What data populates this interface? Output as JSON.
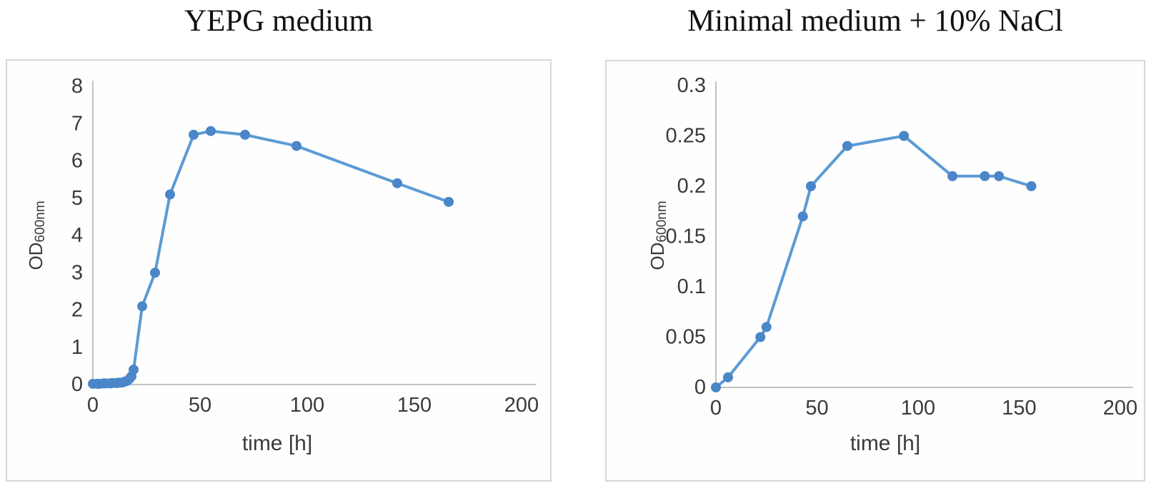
{
  "page": {
    "description": "Two growth-curve line charts of optical density versus time",
    "background_color": "#ffffff"
  },
  "colors": {
    "line": "#5b9bd5",
    "marker": "#4a86c8",
    "axis": "#c2c2c2",
    "tick_text": "#3a3a3a",
    "title_text": "#111111",
    "panel_border": "#d7d7d7"
  },
  "chart_data": [
    {
      "type": "line",
      "title": "YEPG medium",
      "xlabel": "time [h]",
      "ylabel": "OD600nm",
      "ylabel_main": "OD",
      "ylabel_sub": "600nm",
      "xlim": [
        0,
        200
      ],
      "ylim": [
        0,
        8
      ],
      "x_ticks": [
        0,
        50,
        100,
        150,
        200
      ],
      "y_ticks": [
        0,
        1,
        2,
        3,
        4,
        5,
        6,
        7,
        8
      ],
      "grid": false,
      "legend": false,
      "series": [
        {
          "name": "OD600nm",
          "x": [
            0,
            2,
            3,
            5,
            6,
            8,
            9,
            11,
            12,
            13,
            14,
            15,
            16,
            17,
            18,
            19,
            23,
            29,
            36,
            47,
            55,
            71,
            95,
            142,
            166
          ],
          "y": [
            0.02,
            0.02,
            0.02,
            0.03,
            0.03,
            0.03,
            0.04,
            0.04,
            0.05,
            0.05,
            0.06,
            0.08,
            0.1,
            0.15,
            0.22,
            0.4,
            2.1,
            3.0,
            5.1,
            6.7,
            6.8,
            6.7,
            6.4,
            5.4,
            4.9
          ]
        }
      ]
    },
    {
      "type": "line",
      "title": "Minimal medium + 10% NaCl",
      "xlabel": "time [h]",
      "ylabel": "OD600nm",
      "ylabel_main": "OD",
      "ylabel_sub": "600nm",
      "xlim": [
        0,
        200
      ],
      "ylim": [
        0,
        0.3
      ],
      "x_ticks": [
        0,
        50,
        100,
        150,
        200
      ],
      "y_ticks": [
        0,
        0.05,
        0.1,
        0.15,
        0.2,
        0.25,
        0.3
      ],
      "grid": false,
      "legend": false,
      "series": [
        {
          "name": "OD600nm",
          "x": [
            0,
            6,
            22,
            25,
            43,
            47,
            65,
            93,
            117,
            133,
            140,
            156
          ],
          "y": [
            0,
            0.01,
            0.05,
            0.06,
            0.17,
            0.2,
            0.24,
            0.25,
            0.21,
            0.21,
            0.21,
            0.2
          ]
        }
      ]
    }
  ]
}
